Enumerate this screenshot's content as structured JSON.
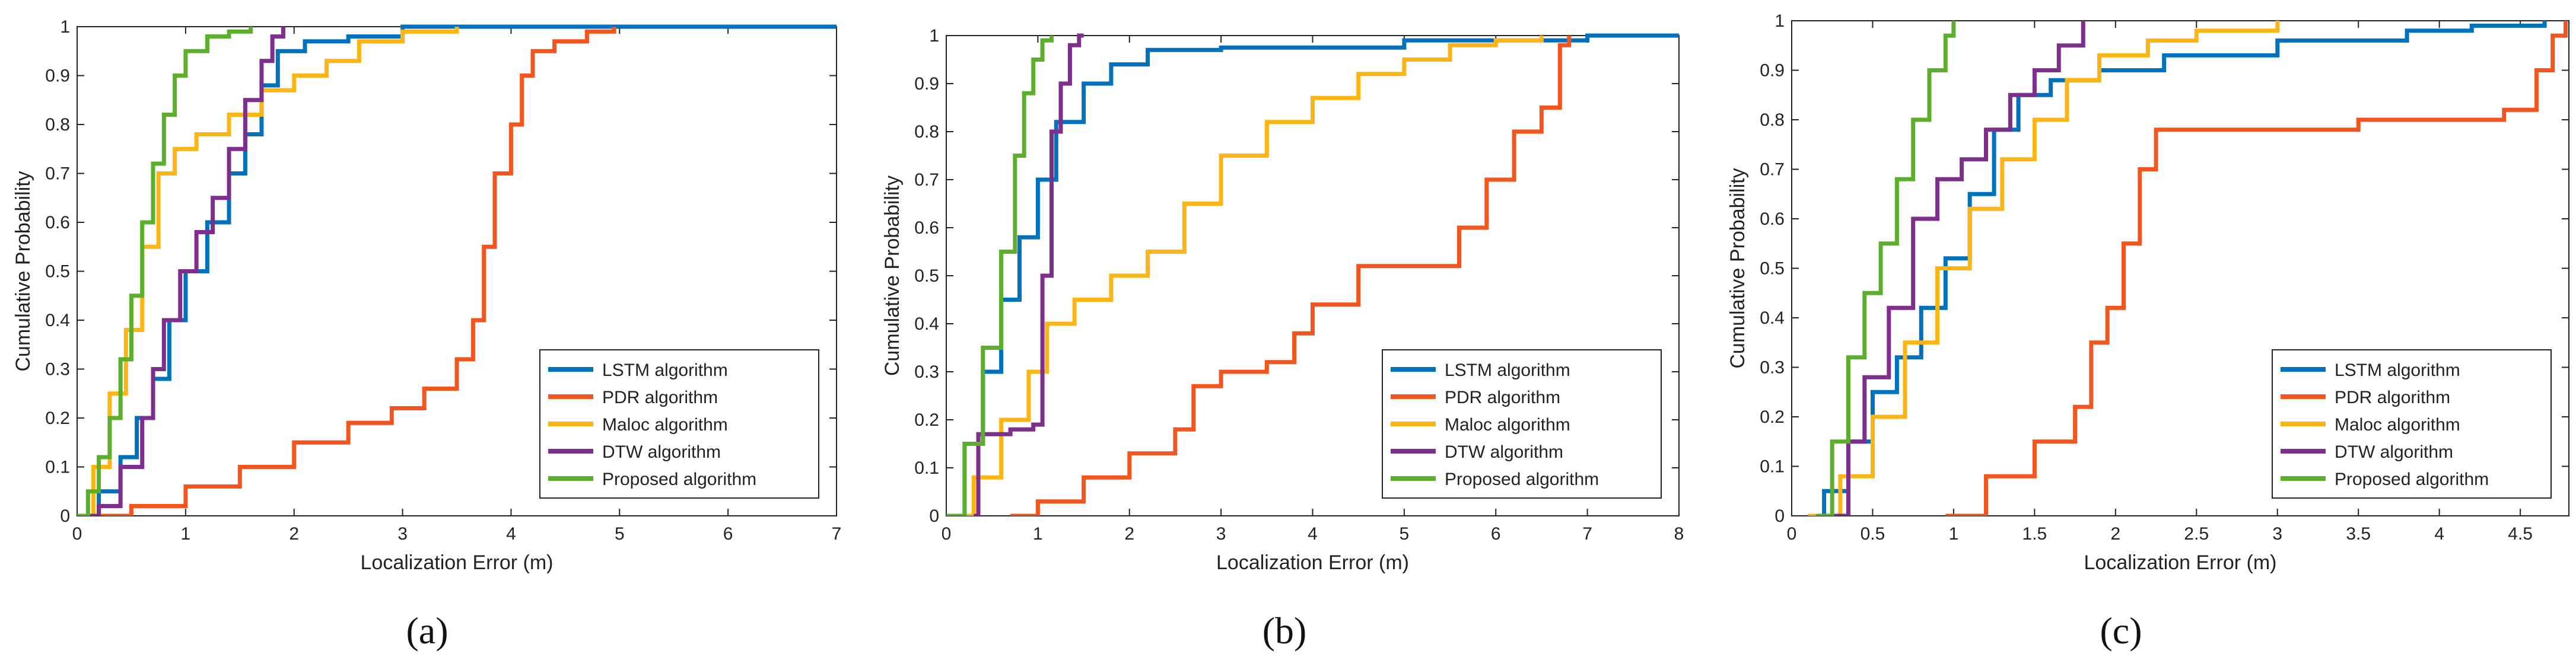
{
  "figure": {
    "colors": {
      "LSTM": "#0072BD",
      "PDR": "#F2551D",
      "Maloc": "#FDB515",
      "DTW": "#7E2F8E",
      "Proposed": "#5BAF2B"
    }
  },
  "chart_data": [
    {
      "type": "line",
      "panel": "(a)",
      "xlabel": "Localization Error (m)",
      "ylabel": "Cumulative Probability",
      "xlim": [
        0,
        7
      ],
      "ylim": [
        0,
        1
      ],
      "xticks": [
        "0",
        "1",
        "2",
        "3",
        "4",
        "5",
        "6",
        "7"
      ],
      "yticks": [
        "0",
        "0.1",
        "0.2",
        "0.3",
        "0.4",
        "0.5",
        "0.6",
        "0.7",
        "0.8",
        "0.9",
        "1"
      ],
      "legend_position": "bottom-right",
      "series": [
        {
          "name": "LSTM algorithm",
          "key": "LSTM",
          "x": [
            0,
            0.2,
            0.4,
            0.55,
            0.7,
            0.85,
            1.0,
            1.2,
            1.4,
            1.55,
            1.7,
            1.85,
            2.1,
            2.5,
            3.0,
            7.0
          ],
          "y": [
            0,
            0.05,
            0.12,
            0.2,
            0.28,
            0.4,
            0.5,
            0.6,
            0.7,
            0.78,
            0.88,
            0.95,
            0.97,
            0.98,
            1.0,
            1.0
          ]
        },
        {
          "name": "PDR algorithm",
          "key": "PDR",
          "x": [
            0.2,
            0.5,
            1.0,
            1.5,
            2.0,
            2.5,
            2.9,
            3.2,
            3.5,
            3.65,
            3.75,
            3.85,
            4.0,
            4.1,
            4.2,
            4.4,
            4.7,
            4.95
          ],
          "y": [
            0,
            0.02,
            0.06,
            0.1,
            0.15,
            0.19,
            0.22,
            0.26,
            0.32,
            0.4,
            0.55,
            0.7,
            0.8,
            0.9,
            0.95,
            0.97,
            0.99,
            1.0
          ]
        },
        {
          "name": "Maloc algorithm",
          "key": "Maloc",
          "x": [
            0,
            0.15,
            0.3,
            0.45,
            0.6,
            0.75,
            0.9,
            1.1,
            1.4,
            1.7,
            2.0,
            2.3,
            2.6,
            3.0,
            3.5
          ],
          "y": [
            0,
            0.1,
            0.25,
            0.38,
            0.55,
            0.7,
            0.75,
            0.78,
            0.82,
            0.87,
            0.9,
            0.93,
            0.97,
            0.99,
            1.0
          ]
        },
        {
          "name": "DTW algorithm",
          "key": "DTW",
          "x": [
            0,
            0.2,
            0.4,
            0.6,
            0.7,
            0.8,
            0.95,
            1.1,
            1.25,
            1.4,
            1.55,
            1.7,
            1.8,
            1.9
          ],
          "y": [
            0,
            0.02,
            0.1,
            0.2,
            0.3,
            0.4,
            0.5,
            0.58,
            0.65,
            0.75,
            0.85,
            0.93,
            0.98,
            1.0
          ]
        },
        {
          "name": "Proposed algorithm",
          "key": "Proposed",
          "x": [
            0,
            0.1,
            0.2,
            0.3,
            0.4,
            0.5,
            0.6,
            0.7,
            0.8,
            0.9,
            1.0,
            1.2,
            1.4,
            1.6
          ],
          "y": [
            0,
            0.05,
            0.12,
            0.2,
            0.32,
            0.45,
            0.6,
            0.72,
            0.82,
            0.9,
            0.95,
            0.98,
            0.99,
            1.0
          ]
        }
      ]
    },
    {
      "type": "line",
      "panel": "(b)",
      "xlabel": "Localization Error (m)",
      "ylabel": "Cumulative Probability",
      "xlim": [
        0,
        8
      ],
      "ylim": [
        0,
        1
      ],
      "xticks": [
        "0",
        "1",
        "2",
        "3",
        "4",
        "5",
        "6",
        "7",
        "8"
      ],
      "yticks": [
        "0",
        "0.1",
        "0.2",
        "0.3",
        "0.4",
        "0.5",
        "0.6",
        "0.7",
        "0.8",
        "0.9",
        "1"
      ],
      "legend_position": "bottom-right",
      "series": [
        {
          "name": "LSTM algorithm",
          "key": "LSTM",
          "x": [
            0,
            0.2,
            0.4,
            0.6,
            0.8,
            1.0,
            1.2,
            1.5,
            1.8,
            2.2,
            3.0,
            5.0,
            7.0,
            8.0
          ],
          "y": [
            0,
            0.15,
            0.3,
            0.45,
            0.58,
            0.7,
            0.82,
            0.9,
            0.94,
            0.97,
            0.975,
            0.99,
            1.0,
            1.0
          ]
        },
        {
          "name": "PDR algorithm",
          "key": "PDR",
          "x": [
            0.7,
            1.0,
            1.5,
            2.0,
            2.5,
            2.7,
            3.0,
            3.5,
            3.8,
            4.0,
            4.5,
            5.0,
            5.4,
            5.6,
            5.9,
            6.2,
            6.5,
            6.7,
            6.8
          ],
          "y": [
            0,
            0.03,
            0.08,
            0.13,
            0.18,
            0.27,
            0.3,
            0.32,
            0.38,
            0.44,
            0.52,
            0.52,
            0.52,
            0.6,
            0.7,
            0.8,
            0.85,
            0.98,
            1.0
          ]
        },
        {
          "name": "Maloc algorithm",
          "key": "Maloc",
          "x": [
            0,
            0.3,
            0.6,
            0.9,
            1.1,
            1.4,
            1.8,
            2.2,
            2.6,
            3.0,
            3.5,
            4.0,
            4.5,
            5.0,
            5.5,
            6.0,
            6.5
          ],
          "y": [
            0,
            0.08,
            0.2,
            0.3,
            0.4,
            0.45,
            0.5,
            0.55,
            0.65,
            0.75,
            0.82,
            0.87,
            0.92,
            0.95,
            0.98,
            0.99,
            1.0
          ]
        },
        {
          "name": "DTW algorithm",
          "key": "DTW",
          "x": [
            0.3,
            0.35,
            0.7,
            0.95,
            1.05,
            1.15,
            1.25,
            1.35,
            1.45,
            1.5
          ],
          "y": [
            0,
            0.17,
            0.18,
            0.19,
            0.5,
            0.8,
            0.9,
            0.98,
            1.0,
            1.0
          ]
        },
        {
          "name": "Proposed algorithm",
          "key": "Proposed",
          "x": [
            0,
            0.2,
            0.4,
            0.6,
            0.75,
            0.85,
            0.95,
            1.05,
            1.15
          ],
          "y": [
            0,
            0.15,
            0.35,
            0.55,
            0.75,
            0.88,
            0.95,
            0.99,
            1.0
          ]
        }
      ]
    },
    {
      "type": "line",
      "panel": "(c)",
      "xlabel": "Localization Error (m)",
      "ylabel": "Cumulative Probability",
      "xlim": [
        0,
        4.8
      ],
      "ylim": [
        0,
        1
      ],
      "xticks": [
        "0",
        "0.5",
        "1",
        "1.5",
        "2",
        "2.5",
        "3",
        "3.5",
        "4",
        "4.5"
      ],
      "yticks": [
        "0",
        "0.1",
        "0.2",
        "0.3",
        "0.4",
        "0.5",
        "0.6",
        "0.7",
        "0.8",
        "0.9",
        "1"
      ],
      "legend_position": "bottom-right",
      "series": [
        {
          "name": "LSTM algorithm",
          "key": "LSTM",
          "x": [
            0.1,
            0.2,
            0.35,
            0.5,
            0.65,
            0.8,
            0.95,
            1.1,
            1.25,
            1.4,
            1.6,
            1.9,
            2.3,
            3.0,
            3.8,
            4.2,
            4.65
          ],
          "y": [
            0,
            0.05,
            0.15,
            0.25,
            0.32,
            0.42,
            0.52,
            0.65,
            0.78,
            0.85,
            0.88,
            0.9,
            0.93,
            0.96,
            0.98,
            0.99,
            1.0
          ]
        },
        {
          "name": "PDR algorithm",
          "key": "PDR",
          "x": [
            0.95,
            1.2,
            1.5,
            1.75,
            1.85,
            1.95,
            2.05,
            2.15,
            2.25,
            3.0,
            3.5,
            4.0,
            4.4,
            4.6,
            4.7,
            4.78
          ],
          "y": [
            0,
            0.08,
            0.15,
            0.22,
            0.35,
            0.42,
            0.55,
            0.7,
            0.78,
            0.78,
            0.8,
            0.8,
            0.82,
            0.9,
            0.97,
            1.0
          ]
        },
        {
          "name": "Maloc algorithm",
          "key": "Maloc",
          "x": [
            0.1,
            0.3,
            0.5,
            0.7,
            0.9,
            1.1,
            1.3,
            1.5,
            1.7,
            1.9,
            2.2,
            2.5,
            3.0
          ],
          "y": [
            0,
            0.08,
            0.2,
            0.35,
            0.5,
            0.62,
            0.72,
            0.8,
            0.88,
            0.93,
            0.96,
            0.98,
            1.0
          ]
        },
        {
          "name": "DTW algorithm",
          "key": "DTW",
          "x": [
            0.25,
            0.35,
            0.45,
            0.6,
            0.75,
            0.9,
            1.05,
            1.2,
            1.35,
            1.5,
            1.65,
            1.8
          ],
          "y": [
            0,
            0.15,
            0.28,
            0.42,
            0.6,
            0.68,
            0.72,
            0.78,
            0.85,
            0.9,
            0.95,
            1.0
          ]
        },
        {
          "name": "Proposed algorithm",
          "key": "Proposed",
          "x": [
            0.15,
            0.25,
            0.35,
            0.45,
            0.55,
            0.65,
            0.75,
            0.85,
            0.95,
            1.0
          ],
          "y": [
            0,
            0.15,
            0.32,
            0.45,
            0.55,
            0.68,
            0.8,
            0.9,
            0.97,
            1.0
          ]
        }
      ]
    }
  ]
}
